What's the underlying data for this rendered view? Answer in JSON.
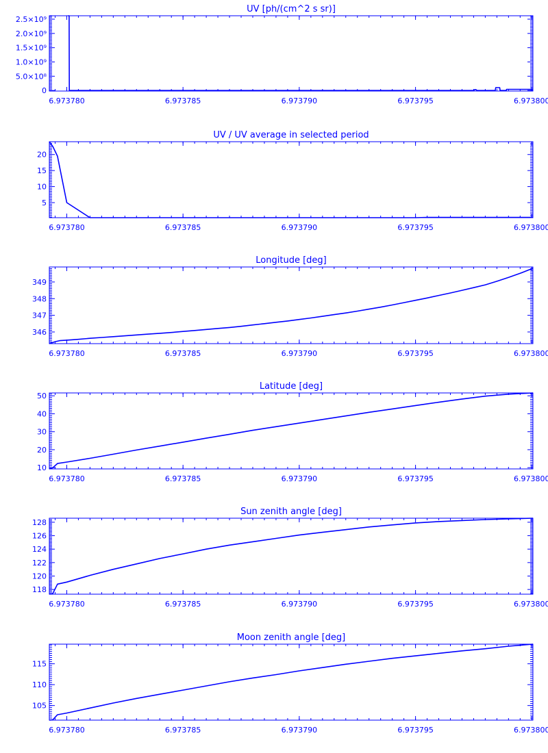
{
  "figure": {
    "line_color": "#0000ff",
    "background": "#ffffff"
  },
  "chart_data": [
    {
      "type": "line",
      "title": "UV [ph/(cm^2 s sr)]",
      "xlim": [
        6.97377925,
        6.97380005
      ],
      "x_ticks": [
        "6.973780",
        "6.973785",
        "6.973790",
        "6.973795",
        "6.973800"
      ],
      "x_tick_values": [
        6.97378,
        6.973785,
        6.97379,
        6.973795,
        6.9738
      ],
      "ylim": [
        -20000000.0,
        2620000000.0
      ],
      "y_ticks": [
        "0",
        "5.0×10⁸",
        "1.0×10⁹",
        "1.5×10⁹",
        "2.0×10⁹",
        "2.5×10⁹"
      ],
      "y_tick_values": [
        0,
        500000000.0,
        1000000000.0,
        1500000000.0,
        2000000000.0,
        2500000000.0
      ],
      "series": [
        {
          "x": [
            6.97377925,
            6.97378005,
            6.97378006,
            6.9737801,
            6.97378011,
            6.9737975,
            6.97379755,
            6.9737976,
            6.97379765,
            6.97379843,
            6.97379845,
            6.97379862,
            6.97379864,
            6.9737989,
            6.97379892,
            6.97380005
          ],
          "y": [
            null,
            null,
            2620000000.0,
            2620000000.0,
            0.0,
            0.0,
            30000000.0,
            30000000.0,
            0.0,
            0.0,
            100000000.0,
            100000000.0,
            0.0,
            0.0,
            40000000.0,
            40000000.0
          ]
        }
      ]
    },
    {
      "type": "line",
      "title": "UV / UV average in selected period",
      "xlim": [
        6.97377925,
        6.97380005
      ],
      "x_ticks": [
        "6.973780",
        "6.973785",
        "6.973790",
        "6.973795",
        "6.973800"
      ],
      "x_tick_values": [
        6.97378,
        6.973785,
        6.97379,
        6.973795,
        6.9738
      ],
      "ylim": [
        0.3,
        24.0
      ],
      "y_ticks": [
        "5",
        "10",
        "15",
        "20"
      ],
      "y_tick_values": [
        5,
        10,
        15,
        20
      ],
      "series": [
        {
          "x": [
            6.97377925,
            6.9737794,
            6.9737796,
            6.97378,
            6.973781,
            6.973795,
            6.9737955,
            6.97380005
          ],
          "y": [
            24.0,
            22.5,
            19.5,
            5.0,
            0.3,
            0.3,
            0.4,
            0.4
          ]
        }
      ]
    },
    {
      "type": "line",
      "title": "Longitude [deg]",
      "xlim": [
        6.97377925,
        6.97380005
      ],
      "x_ticks": [
        "6.973780",
        "6.973785",
        "6.973790",
        "6.973795",
        "6.973800"
      ],
      "x_tick_values": [
        6.97378,
        6.973785,
        6.97379,
        6.973795,
        6.9738
      ],
      "ylim": [
        345.3,
        349.9
      ],
      "y_ticks": [
        "346",
        "347",
        "348",
        "349"
      ],
      "y_tick_values": [
        346,
        347,
        348,
        349
      ],
      "series": [
        {
          "x": [
            6.97377925,
            6.9737795,
            6.9737797,
            6.97378,
            6.9737805,
            6.973781,
            6.9737815,
            6.973782,
            6.9737825,
            6.973783,
            6.9737835,
            6.973784,
            6.9737845,
            6.973785,
            6.9737855,
            6.973786,
            6.9737865,
            6.973787,
            6.9737875,
            6.973788,
            6.9737885,
            6.973789,
            6.9737895,
            6.97379,
            6.9737905,
            6.973791,
            6.9737915,
            6.973792,
            6.9737925,
            6.973793,
            6.9737935,
            6.973794,
            6.9737945,
            6.973795,
            6.9737955,
            6.973796,
            6.9737965,
            6.973797,
            6.9737975,
            6.973798,
            6.9737985,
            6.973799,
            6.9737995,
            6.97380005
          ],
          "y": [
            345.3,
            345.42,
            345.48,
            345.51,
            345.56,
            345.62,
            345.67,
            345.72,
            345.77,
            345.82,
            345.87,
            345.92,
            345.97,
            346.03,
            346.09,
            346.15,
            346.21,
            346.27,
            346.34,
            346.42,
            346.5,
            346.58,
            346.66,
            346.75,
            346.84,
            346.94,
            347.04,
            347.14,
            347.25,
            347.37,
            347.49,
            347.62,
            347.76,
            347.9,
            348.04,
            348.19,
            348.34,
            348.5,
            348.66,
            348.83,
            349.04,
            349.27,
            349.52,
            349.82
          ]
        }
      ]
    },
    {
      "type": "line",
      "title": "Latitude [deg]",
      "xlim": [
        6.97377925,
        6.97380005
      ],
      "x_ticks": [
        "6.973780",
        "6.973785",
        "6.973790",
        "6.973795",
        "6.973800"
      ],
      "x_tick_values": [
        6.97378,
        6.973785,
        6.97379,
        6.973795,
        6.9738
      ],
      "ylim": [
        9.3,
        51.6
      ],
      "y_ticks": [
        "10",
        "20",
        "30",
        "40",
        "50"
      ],
      "y_tick_values": [
        10,
        20,
        30,
        40,
        50
      ],
      "series": [
        {
          "x": [
            6.97377925,
            6.9737794,
            6.9737796,
            6.97378,
            6.973781,
            6.973782,
            6.973783,
            6.973784,
            6.973785,
            6.973786,
            6.973787,
            6.973788,
            6.973789,
            6.97379,
            6.973791,
            6.973792,
            6.973793,
            6.973794,
            6.973795,
            6.973796,
            6.973797,
            6.973798,
            6.973799,
            6.97380005
          ],
          "y": [
            9.3,
            10.0,
            12.3,
            13.1,
            15.2,
            17.5,
            19.8,
            22.0,
            24.2,
            26.4,
            28.6,
            30.8,
            32.8,
            34.8,
            36.8,
            38.8,
            40.8,
            42.7,
            44.6,
            46.4,
            48.2,
            49.8,
            50.9,
            51.6
          ]
        }
      ]
    },
    {
      "type": "line",
      "title": "Sun zenith angle [deg]",
      "xlim": [
        6.97377925,
        6.97380005
      ],
      "x_ticks": [
        "6.973780",
        "6.973785",
        "6.973790",
        "6.973795",
        "6.973800"
      ],
      "x_tick_values": [
        6.97378,
        6.973785,
        6.97379,
        6.973795,
        6.9738
      ],
      "ylim": [
        117.3,
        128.6
      ],
      "y_ticks": [
        "118",
        "120",
        "122",
        "124",
        "126",
        "128"
      ],
      "y_tick_values": [
        118,
        120,
        122,
        124,
        126,
        128
      ],
      "series": [
        {
          "x": [
            6.97377925,
            6.9737794,
            6.9737796,
            6.97378,
            6.973781,
            6.973782,
            6.973783,
            6.973784,
            6.973785,
            6.973786,
            6.973787,
            6.973788,
            6.973789,
            6.97379,
            6.973791,
            6.973792,
            6.973793,
            6.973794,
            6.973795,
            6.973796,
            6.973797,
            6.973798,
            6.973799,
            6.97380005
          ],
          "y": [
            117.3,
            117.4,
            118.8,
            119.1,
            120.1,
            121.0,
            121.8,
            122.6,
            123.3,
            124.0,
            124.6,
            125.1,
            125.6,
            126.1,
            126.5,
            126.9,
            127.3,
            127.6,
            127.9,
            128.1,
            128.25,
            128.4,
            128.5,
            128.6
          ]
        }
      ]
    },
    {
      "type": "line",
      "title": "Moon zenith angle [deg]",
      "xlim": [
        6.97377925,
        6.97380005
      ],
      "x_ticks": [
        "6.973780",
        "6.973785",
        "6.973790",
        "6.973795",
        "6.973800"
      ],
      "x_tick_values": [
        6.97378,
        6.973785,
        6.97379,
        6.973795,
        6.9738
      ],
      "ylim": [
        101.5,
        119.7
      ],
      "y_ticks": [
        "105",
        "110",
        "115"
      ],
      "y_tick_values": [
        105,
        110,
        115
      ],
      "series": [
        {
          "x": [
            6.97377925,
            6.9737794,
            6.9737796,
            6.97378,
            6.973781,
            6.973782,
            6.973783,
            6.973784,
            6.973785,
            6.973786,
            6.973787,
            6.973788,
            6.973789,
            6.97379,
            6.973791,
            6.973792,
            6.973793,
            6.973794,
            6.973795,
            6.973796,
            6.973797,
            6.973798,
            6.973799,
            6.97380005
          ],
          "y": [
            101.5,
            101.6,
            102.8,
            103.2,
            104.4,
            105.6,
            106.7,
            107.7,
            108.7,
            109.7,
            110.7,
            111.6,
            112.4,
            113.3,
            114.1,
            114.9,
            115.6,
            116.3,
            116.9,
            117.5,
            118.1,
            118.6,
            119.2,
            119.7
          ]
        }
      ]
    }
  ]
}
